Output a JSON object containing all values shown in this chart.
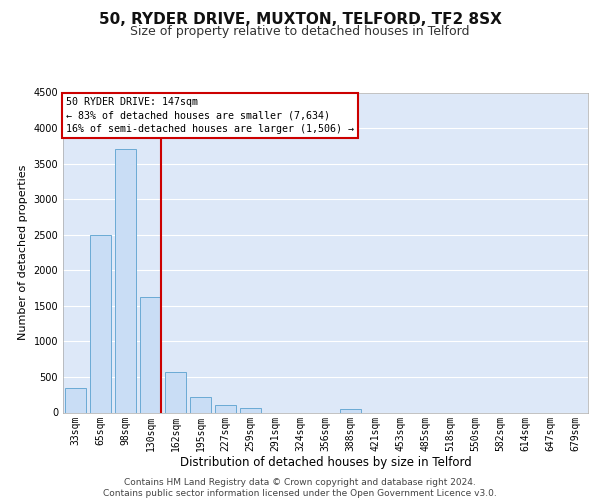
{
  "title1": "50, RYDER DRIVE, MUXTON, TELFORD, TF2 8SX",
  "title2": "Size of property relative to detached houses in Telford",
  "xlabel": "Distribution of detached houses by size in Telford",
  "ylabel": "Number of detached properties",
  "categories": [
    "33sqm",
    "65sqm",
    "98sqm",
    "130sqm",
    "162sqm",
    "195sqm",
    "227sqm",
    "259sqm",
    "291sqm",
    "324sqm",
    "356sqm",
    "388sqm",
    "421sqm",
    "453sqm",
    "485sqm",
    "518sqm",
    "550sqm",
    "582sqm",
    "614sqm",
    "647sqm",
    "679sqm"
  ],
  "values": [
    350,
    2500,
    3700,
    1625,
    570,
    225,
    100,
    60,
    0,
    0,
    0,
    50,
    0,
    0,
    0,
    0,
    0,
    0,
    0,
    0,
    0
  ],
  "bar_color": "#c9ddf5",
  "bar_edge_color": "#6aaad4",
  "vline_color": "#cc0000",
  "annotation_text": "50 RYDER DRIVE: 147sqm\n← 83% of detached houses are smaller (7,634)\n16% of semi-detached houses are larger (1,506) →",
  "annotation_box_color": "#ffffff",
  "annotation_box_edge": "#cc0000",
  "ylim": [
    0,
    4500
  ],
  "yticks": [
    0,
    500,
    1000,
    1500,
    2000,
    2500,
    3000,
    3500,
    4000,
    4500
  ],
  "background_color": "#dde8f8",
  "footer_text": "Contains HM Land Registry data © Crown copyright and database right 2024.\nContains public sector information licensed under the Open Government Licence v3.0.",
  "grid_color": "#ffffff",
  "title1_fontsize": 11,
  "title2_fontsize": 9,
  "xlabel_fontsize": 8.5,
  "ylabel_fontsize": 8,
  "tick_fontsize": 7,
  "footer_fontsize": 6.5
}
